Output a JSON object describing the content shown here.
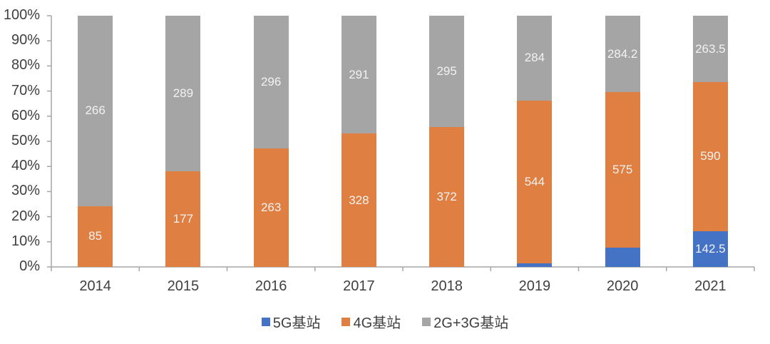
{
  "chart_data": {
    "type": "bar",
    "stacked": true,
    "normalized_100_percent": true,
    "title": "",
    "xlabel": "",
    "ylabel": "",
    "ylim": [
      0,
      100
    ],
    "yticks": [
      "0%",
      "10%",
      "20%",
      "30%",
      "40%",
      "50%",
      "60%",
      "70%",
      "80%",
      "90%",
      "100%"
    ],
    "categories": [
      "2014",
      "2015",
      "2016",
      "2017",
      "2018",
      "2019",
      "2020",
      "2021"
    ],
    "series": [
      {
        "name": "5G基站",
        "color": "#4472c4",
        "values": [
          0,
          0,
          0,
          0,
          0,
          13,
          71.8,
          142.5
        ],
        "labels": [
          "",
          "",
          "",
          "",
          "",
          "",
          "",
          "142.5"
        ],
        "approx_share_pct": [
          0,
          0,
          0,
          0,
          0,
          1.5,
          7.7,
          14.5
        ]
      },
      {
        "name": "4G基站",
        "color": "#e07f42",
        "values": [
          85,
          177,
          263,
          328,
          372,
          544,
          575,
          590
        ],
        "labels": [
          "85",
          "177",
          "263",
          "328",
          "372",
          "544",
          "575",
          "590"
        ]
      },
      {
        "name": "2G+3G基站",
        "color": "#a5a5a5",
        "values": [
          266,
          289,
          296,
          291,
          295,
          284,
          284.2,
          263.5
        ],
        "labels": [
          "266",
          "289",
          "296",
          "291",
          "295",
          "284",
          "284.2",
          "263.5"
        ]
      }
    ],
    "legend_position": "bottom",
    "grid": false
  },
  "legend": [
    {
      "label": "5G基站",
      "color": "#4472c4"
    },
    {
      "label": "4G基站",
      "color": "#e07f42"
    },
    {
      "label": "2G+3G基站",
      "color": "#a5a5a5"
    }
  ]
}
